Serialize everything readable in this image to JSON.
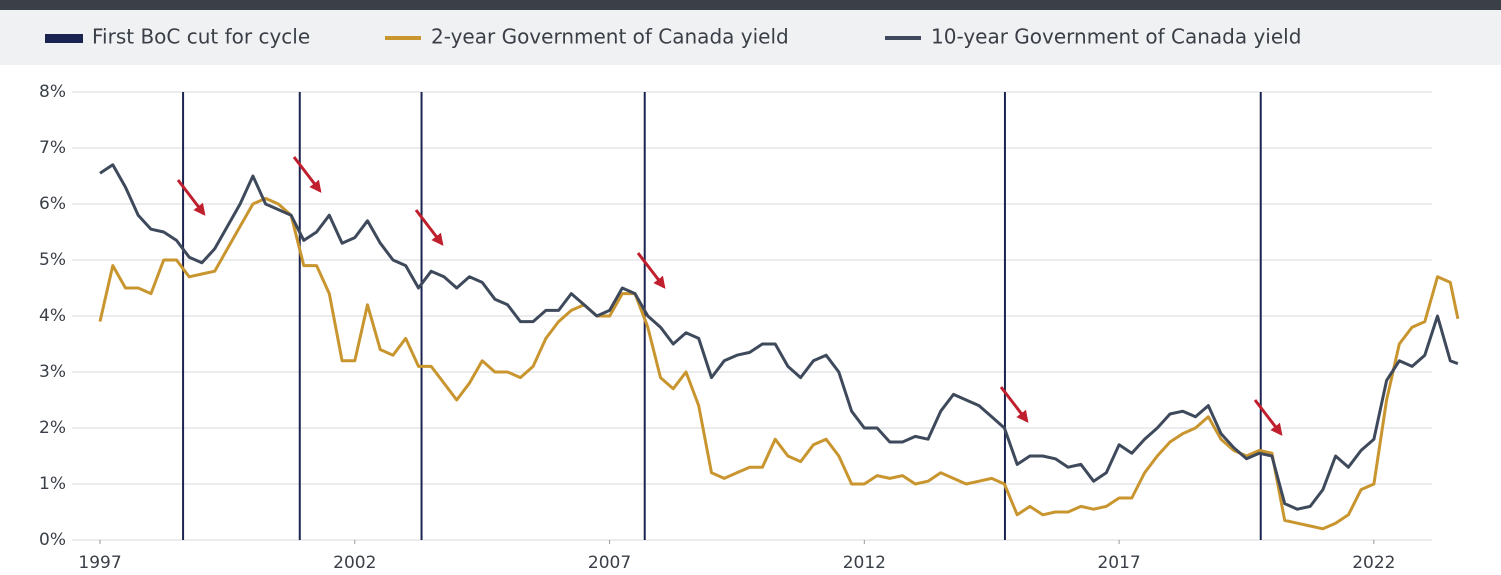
{
  "chart_data": {
    "type": "line",
    "cut_lines": {
      "name": "First BoC cut for cycle",
      "color": "#1b2450",
      "x": [
        1998.63,
        2000.92,
        2003.31,
        2007.69,
        2014.76,
        2019.78
      ]
    },
    "x": [
      1997.0,
      1997.25,
      1997.5,
      1997.75,
      1998.0,
      1998.25,
      1998.5,
      1998.75,
      1999.0,
      1999.25,
      1999.5,
      1999.75,
      2000.0,
      2000.25,
      2000.5,
      2000.75,
      2001.0,
      2001.25,
      2001.5,
      2001.75,
      2002.0,
      2002.25,
      2002.5,
      2002.75,
      2003.0,
      2003.25,
      2003.5,
      2003.75,
      2004.0,
      2004.25,
      2004.5,
      2004.75,
      2005.0,
      2005.25,
      2005.5,
      2005.75,
      2006.0,
      2006.25,
      2006.5,
      2006.75,
      2007.0,
      2007.25,
      2007.5,
      2007.75,
      2008.0,
      2008.25,
      2008.5,
      2008.75,
      2009.0,
      2009.25,
      2009.5,
      2009.75,
      2010.0,
      2010.25,
      2010.5,
      2010.75,
      2011.0,
      2011.25,
      2011.5,
      2011.75,
      2012.0,
      2012.25,
      2012.5,
      2012.75,
      2013.0,
      2013.25,
      2013.5,
      2013.75,
      2014.0,
      2014.25,
      2014.5,
      2014.75,
      2015.0,
      2015.25,
      2015.5,
      2015.75,
      2016.0,
      2016.25,
      2016.5,
      2016.75,
      2017.0,
      2017.25,
      2017.5,
      2017.75,
      2018.0,
      2018.25,
      2018.5,
      2018.75,
      2019.0,
      2019.25,
      2019.5,
      2019.75,
      2020.0,
      2020.25,
      2020.5,
      2020.75,
      2021.0,
      2021.25,
      2021.5,
      2021.75,
      2022.0,
      2022.25,
      2022.5,
      2022.75,
      2023.0,
      2023.25,
      2023.5,
      2023.65
    ],
    "series": [
      {
        "name": "2-year Government of Canada yield",
        "color": "#c9952f",
        "values": [
          3.9,
          4.9,
          4.5,
          4.5,
          4.4,
          5.0,
          5.0,
          4.7,
          4.75,
          4.8,
          5.2,
          5.6,
          6.0,
          6.1,
          6.0,
          5.8,
          4.9,
          4.9,
          4.4,
          3.2,
          3.2,
          4.2,
          3.4,
          3.3,
          3.6,
          3.1,
          3.1,
          2.8,
          2.5,
          2.8,
          3.2,
          3.0,
          3.0,
          2.9,
          3.1,
          3.6,
          3.9,
          4.1,
          4.2,
          4.0,
          4.0,
          4.4,
          4.4,
          3.8,
          2.9,
          2.7,
          3.0,
          2.4,
          1.2,
          1.1,
          1.2,
          1.3,
          1.3,
          1.8,
          1.5,
          1.4,
          1.7,
          1.8,
          1.5,
          1.0,
          1.0,
          1.15,
          1.1,
          1.15,
          1.0,
          1.05,
          1.2,
          1.1,
          1.0,
          1.05,
          1.1,
          1.0,
          0.45,
          0.6,
          0.45,
          0.5,
          0.5,
          0.6,
          0.55,
          0.6,
          0.75,
          0.75,
          1.2,
          1.5,
          1.75,
          1.9,
          2.0,
          2.2,
          1.8,
          1.6,
          1.5,
          1.6,
          1.55,
          0.35,
          0.3,
          0.25,
          0.2,
          0.3,
          0.45,
          0.9,
          1.0,
          2.5,
          3.5,
          3.8,
          3.9,
          4.7,
          4.6,
          3.95
        ]
      },
      {
        "name": "10-year Government of Canada yield",
        "color": "#3e4a5c",
        "values": [
          6.55,
          6.7,
          6.3,
          5.8,
          5.55,
          5.5,
          5.35,
          5.05,
          4.95,
          5.2,
          5.6,
          6.0,
          6.5,
          6.0,
          5.9,
          5.8,
          5.35,
          5.5,
          5.8,
          5.3,
          5.4,
          5.7,
          5.3,
          5.0,
          4.9,
          4.5,
          4.8,
          4.7,
          4.5,
          4.7,
          4.6,
          4.3,
          4.2,
          3.9,
          3.9,
          4.1,
          4.1,
          4.4,
          4.2,
          4.0,
          4.1,
          4.5,
          4.4,
          4.0,
          3.8,
          3.5,
          3.7,
          3.6,
          2.9,
          3.2,
          3.3,
          3.35,
          3.5,
          3.5,
          3.1,
          2.9,
          3.2,
          3.3,
          3.0,
          2.3,
          2.0,
          2.0,
          1.75,
          1.75,
          1.85,
          1.8,
          2.3,
          2.6,
          2.5,
          2.4,
          2.2,
          2.0,
          1.35,
          1.5,
          1.5,
          1.45,
          1.3,
          1.35,
          1.05,
          1.2,
          1.7,
          1.55,
          1.8,
          2.0,
          2.25,
          2.3,
          2.2,
          2.4,
          1.9,
          1.65,
          1.45,
          1.55,
          1.5,
          0.65,
          0.55,
          0.6,
          0.9,
          1.5,
          1.3,
          1.6,
          1.8,
          2.85,
          3.2,
          3.1,
          3.3,
          4.0,
          3.2,
          3.15
        ]
      }
    ],
    "xlim": [
      1996.45,
      2023.73
    ],
    "xticks": [
      1997,
      2002,
      2007,
      2012,
      2017,
      2022
    ],
    "ylim": [
      0,
      8
    ],
    "yticks": [
      {
        "value": 0,
        "label": "0%"
      },
      {
        "value": 1,
        "label": "1%"
      },
      {
        "value": 2,
        "label": "2%"
      },
      {
        "value": 3,
        "label": "3%"
      },
      {
        "value": 4,
        "label": "4%"
      },
      {
        "value": 5,
        "label": "5%"
      },
      {
        "value": 6,
        "label": "6%"
      },
      {
        "value": 7,
        "label": "7%"
      },
      {
        "value": 8,
        "label": "8%"
      }
    ],
    "grid": true
  }
}
